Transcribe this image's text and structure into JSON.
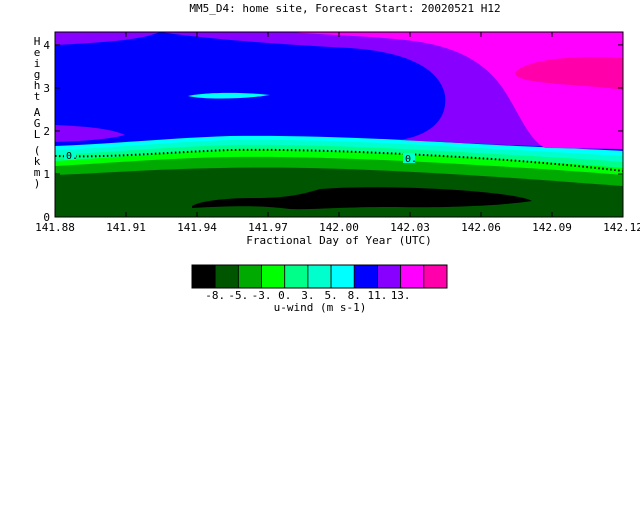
{
  "chart_data": {
    "type": "filled-contour",
    "title": "MM5_D4: home site,  Forecast Start: 20020521 H12",
    "xlabel": "Fractional Day of Year (UTC)",
    "ylabel": "Height AGL (km)",
    "xlim": [
      141.88,
      142.12
    ],
    "ylim": [
      0,
      4.3
    ],
    "x_ticks": [
      "141.88",
      "141.91",
      "141.94",
      "141.97",
      "142.00",
      "142.03",
      "142.06",
      "142.09",
      "142.12"
    ],
    "y_ticks": [
      "0",
      "1",
      "2",
      "3",
      "4"
    ],
    "contour_label": "0.",
    "colorbar": {
      "label": "u-wind (m s-1)",
      "tick_labels": [
        "-8.",
        "-5.",
        "-3.",
        "0.",
        "3.",
        "5.",
        "8.",
        "11.",
        "13."
      ],
      "colors": [
        "#000000",
        "#005500",
        "#00aa00",
        "#00ff00",
        "#00ff88",
        "#00ffcc",
        "#00ffff",
        "#0000ff",
        "#8800ff",
        "#ff00ff",
        "#ff00aa"
      ]
    }
  }
}
